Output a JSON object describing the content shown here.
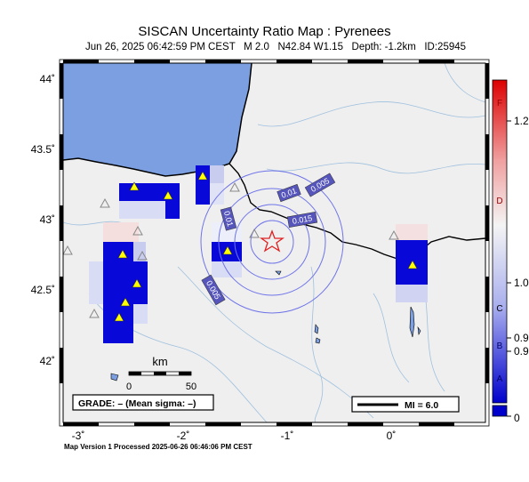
{
  "header": {
    "title": "SISCAN Uncertainty Ratio Map : Pyrenees",
    "subtitle": "Jun 26, 2025 06:42:59 PM CEST   M 2.0   N42.84 W1.15   Depth: -1.2km   ID:25945"
  },
  "axes": {
    "lat_ticks": [
      "44˚",
      "43.5˚",
      "43˚",
      "42.5˚",
      "42˚"
    ],
    "lon_ticks": [
      "-3˚",
      "-2˚",
      "-1˚",
      "0˚"
    ]
  },
  "contours": [
    "0.005",
    "0.01",
    "0.015",
    "0.01",
    "0.005"
  ],
  "scale_bar": {
    "unit": "km",
    "start": "0",
    "end": "50"
  },
  "grade_box": "GRADE: – (Mean sigma: –)",
  "mi_legend": "MI = 6.0",
  "colorbar": {
    "letters": [
      "F",
      "D",
      "C",
      "B",
      "A"
    ],
    "values": [
      "1.2",
      "1.0",
      "0.9",
      "0.9",
      "0"
    ]
  },
  "footer": "Map Version 1 Processed 2025-06-26 06:46:06 PM CEST",
  "colors": {
    "sea": "#7b9fe0",
    "land": "#efefef",
    "cell": "#0808d8",
    "epicenter": "#e02020"
  }
}
